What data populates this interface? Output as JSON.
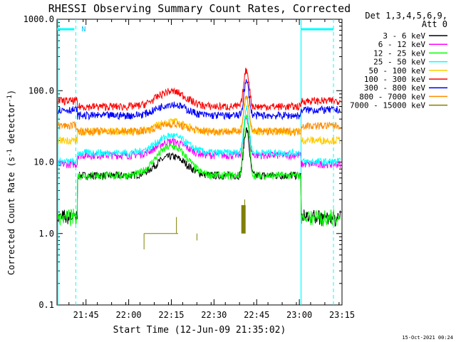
{
  "chart_data": {
    "type": "line",
    "title": "RHESSI Observing Summary Count Rates, Corrected",
    "xlabel": "Start Time (12-Jun-09 21:35:02)",
    "ylabel": "Corrected Count Rate (s",
    "ylabel_sup1": "-1",
    "ylabel_mid": " detector",
    "ylabel_sup2": "-1",
    "ylabel_end": ")",
    "yscale": "log",
    "ylim": [
      0.1,
      1000
    ],
    "xlim_minutes": [
      21.58,
      23.25
    ],
    "xticks": [
      {
        "label": "21:45",
        "t": 21.75
      },
      {
        "label": "22:00",
        "t": 22.0
      },
      {
        "label": "22:15",
        "t": 22.25
      },
      {
        "label": "22:30",
        "t": 22.5
      },
      {
        "label": "22:45",
        "t": 22.75
      },
      {
        "label": "23:00",
        "t": 23.0
      },
      {
        "label": "23:15",
        "t": 23.25
      }
    ],
    "yticks": [
      {
        "label": "1000.0",
        "v": 1000
      },
      {
        "label": "100.0",
        "v": 100
      },
      {
        "label": "10.0",
        "v": 10
      },
      {
        "label": "1.0",
        "v": 1
      },
      {
        "label": "0.1",
        "v": 0.1
      }
    ],
    "legend_header": [
      "Det 1,3,4,5,6,9,",
      "Att 0"
    ],
    "legend_position": "right",
    "series": [
      {
        "name": "3 - 6 keV",
        "color": "#000000",
        "base": 6.5,
        "bump": 5.5,
        "flare": 22
      },
      {
        "name": "6 - 12 keV",
        "color": "#ff00ff",
        "base": 12.5,
        "bump": 7,
        "flare": 30
      },
      {
        "name": "12 - 25 keV",
        "color": "#00ff00",
        "base": 6.5,
        "bump": 10,
        "flare": 36
      },
      {
        "name": "25 - 50 keV",
        "color": "#00ffff",
        "base": 13.5,
        "bump": 10,
        "flare": 42
      },
      {
        "name": "50 - 100 keV",
        "color": "#ffcc00",
        "base": 27,
        "bump": 10,
        "flare": 58
      },
      {
        "name": "100 - 300 keV",
        "color": "#ff0000",
        "base": 60,
        "bump": 38,
        "flare": 135
      },
      {
        "name": "300 - 800 keV",
        "color": "#0000ff",
        "base": 45,
        "bump": 20,
        "flare": 88
      },
      {
        "name": "800 - 7000 keV",
        "color": "#ff8c00",
        "base": 27,
        "bump": 7,
        "flare": 55
      },
      {
        "name": "7000 - 15000 keV",
        "color": "#808000",
        "base": 1.0,
        "bump": 0,
        "flare": 3
      }
    ],
    "events": [
      {
        "t": 21.62,
        "label": "N"
      },
      {
        "t": 23.01,
        "label": ""
      }
    ],
    "flare_peak_time": "22:40",
    "attenuator_state": "0",
    "footer_timestamp": "15-Oct-2021 00:24"
  }
}
